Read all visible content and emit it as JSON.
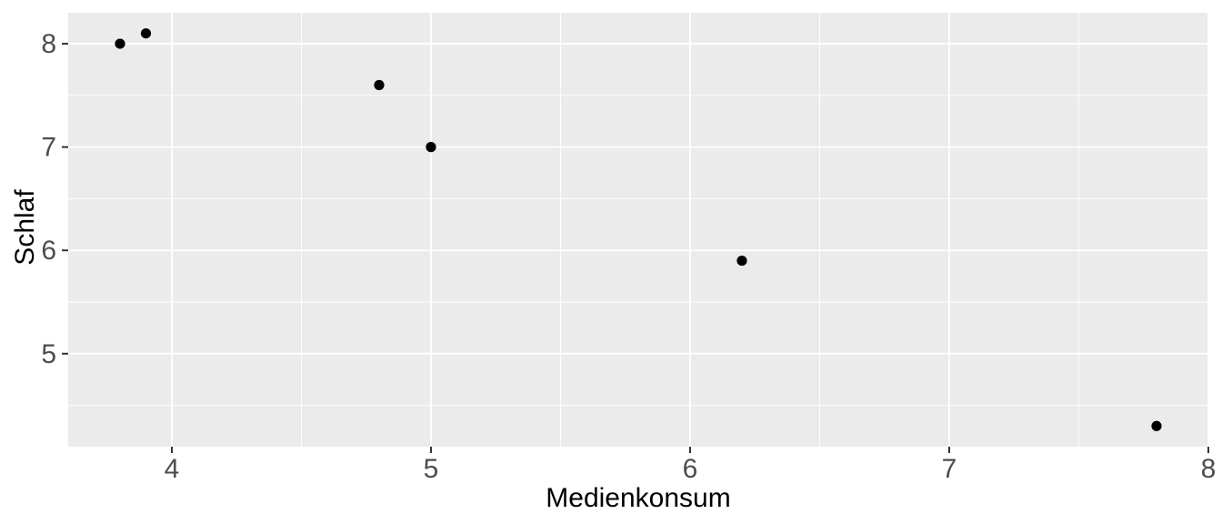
{
  "chart_data": {
    "type": "scatter",
    "title": "",
    "xlabel": "Medienkonsum",
    "ylabel": "Schlaf",
    "points": [
      {
        "x": 3.8,
        "y": 8.0
      },
      {
        "x": 3.9,
        "y": 8.1
      },
      {
        "x": 4.8,
        "y": 7.6
      },
      {
        "x": 5.0,
        "y": 7.0
      },
      {
        "x": 6.2,
        "y": 5.9
      },
      {
        "x": 7.8,
        "y": 4.3
      }
    ],
    "xlim": [
      3.6,
      8.0
    ],
    "ylim": [
      4.1,
      8.3
    ],
    "x_ticks": [
      4,
      5,
      6,
      7,
      8
    ],
    "y_ticks": [
      5,
      6,
      7,
      8
    ],
    "x_minor_ticks": [
      4.5,
      5.5,
      6.5,
      7.5
    ],
    "y_minor_ticks": [
      4.5,
      5.5,
      6.5,
      7.5
    ],
    "grid": true,
    "legend": "none",
    "style": {
      "panel_bg": "#EBEBEB",
      "grid_major_color": "#FFFFFF",
      "grid_minor_color": "#FFFFFF",
      "point_color": "#000000",
      "tick_mark_color": "#333333",
      "tick_label_color": "#4D4D4D",
      "axis_title_color": "#000000",
      "background": "#FFFFFF"
    }
  }
}
